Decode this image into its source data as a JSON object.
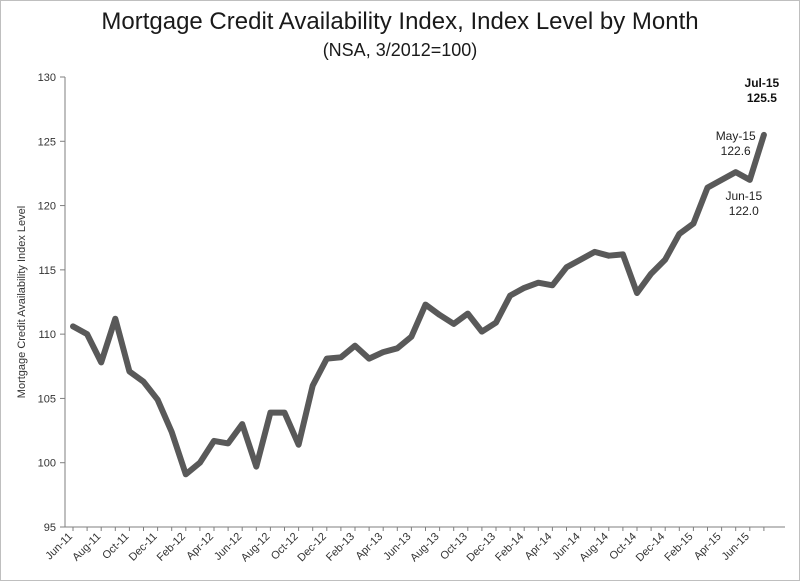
{
  "chart_data": {
    "type": "line",
    "title": "Mortgage Credit Availability Index, Index Level by Month",
    "subtitle": "(NSA, 3/2012=100)",
    "ylabel": "Mortgage Credit Availability Index Level",
    "xlabel": "",
    "ylim": [
      95,
      130
    ],
    "yticks": [
      95,
      100,
      105,
      110,
      115,
      120,
      125,
      130
    ],
    "grid": false,
    "line_color": "#595959",
    "x": [
      "Jun-11",
      "Jul-11",
      "Aug-11",
      "Sep-11",
      "Oct-11",
      "Nov-11",
      "Dec-11",
      "Jan-12",
      "Feb-12",
      "Mar-12",
      "Apr-12",
      "May-12",
      "Jun-12",
      "Jul-12",
      "Aug-12",
      "Sep-12",
      "Oct-12",
      "Nov-12",
      "Dec-12",
      "Jan-13",
      "Feb-13",
      "Mar-13",
      "Apr-13",
      "May-13",
      "Jun-13",
      "Jul-13",
      "Aug-13",
      "Sep-13",
      "Oct-13",
      "Nov-13",
      "Dec-13",
      "Jan-14",
      "Feb-14",
      "Mar-14",
      "Apr-14",
      "May-14",
      "Jun-14",
      "Jul-14",
      "Aug-14",
      "Sep-14",
      "Oct-14",
      "Nov-14",
      "Dec-14",
      "Jan-15",
      "Feb-15",
      "Mar-15",
      "Apr-15",
      "May-15",
      "Jun-15",
      "Jul-15"
    ],
    "xtick_labels": [
      "Jun-11",
      "Aug-11",
      "Oct-11",
      "Dec-11",
      "Feb-12",
      "Apr-12",
      "Jun-12",
      "Aug-12",
      "Oct-12",
      "Dec-12",
      "Feb-13",
      "Apr-13",
      "Jun-13",
      "Aug-13",
      "Oct-13",
      "Dec-13",
      "Feb-14",
      "Apr-14",
      "Jun-14",
      "Aug-14",
      "Oct-14",
      "Dec-14",
      "Feb-15",
      "Apr-15",
      "Jun-15"
    ],
    "series": [
      {
        "values": [
          110.6,
          110.0,
          107.8,
          111.2,
          107.1,
          106.3,
          104.9,
          102.4,
          99.1,
          100.0,
          101.7,
          101.5,
          103.0,
          99.7,
          103.9,
          103.9,
          101.4,
          106.0,
          108.1,
          108.2,
          109.1,
          108.1,
          108.6,
          108.9,
          109.8,
          112.3,
          111.5,
          110.8,
          111.6,
          110.2,
          110.9,
          113.0,
          113.6,
          114.0,
          113.8,
          115.2,
          115.8,
          116.4,
          116.1,
          116.2,
          113.2,
          114.7,
          115.8,
          117.8,
          118.6,
          121.4,
          122.0,
          122.6,
          122.0,
          125.5
        ]
      }
    ],
    "annotations": [
      {
        "label": "Jul-15",
        "value": "125.5",
        "bold": true
      },
      {
        "label": "May-15",
        "value": "122.6",
        "bold": false
      },
      {
        "label": "Jun-15",
        "value": "122.0",
        "bold": false
      }
    ]
  }
}
